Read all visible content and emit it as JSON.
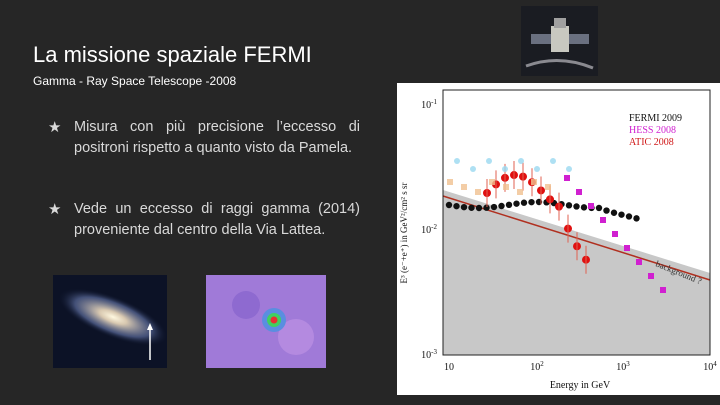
{
  "header": {
    "title": "La missione spaziale FERMI",
    "subtitle": "Gamma - Ray Space Telescope -2008"
  },
  "bullets": [
    {
      "marker": "★",
      "text": "Misura con più precisione l’eccesso di positroni rispetto a quanto visto da Pamela."
    },
    {
      "marker": "★",
      "text": "Vede un eccesso di raggi gamma (2014) proveniente dal centro della Via Lattea."
    }
  ],
  "figure": {
    "legend": [
      "FERMI 2009",
      "HESS 2008",
      "ATIC 2008"
    ],
    "yticks": [
      {
        "base": "10",
        "exp": "-1"
      },
      {
        "base": "10",
        "exp": "-2"
      },
      {
        "base": "10",
        "exp": "-3"
      }
    ],
    "xticks": [
      {
        "base": "10",
        "exp": ""
      },
      {
        "base": "10",
        "exp": "2"
      },
      {
        "base": "10",
        "exp": "3"
      },
      {
        "base": "10",
        "exp": "4"
      }
    ],
    "xlabel": "Energy in GeV",
    "ylabel": "E³ (e⁻+e⁺) in GeV²/cm² s sr",
    "annotation": "background ?"
  }
}
